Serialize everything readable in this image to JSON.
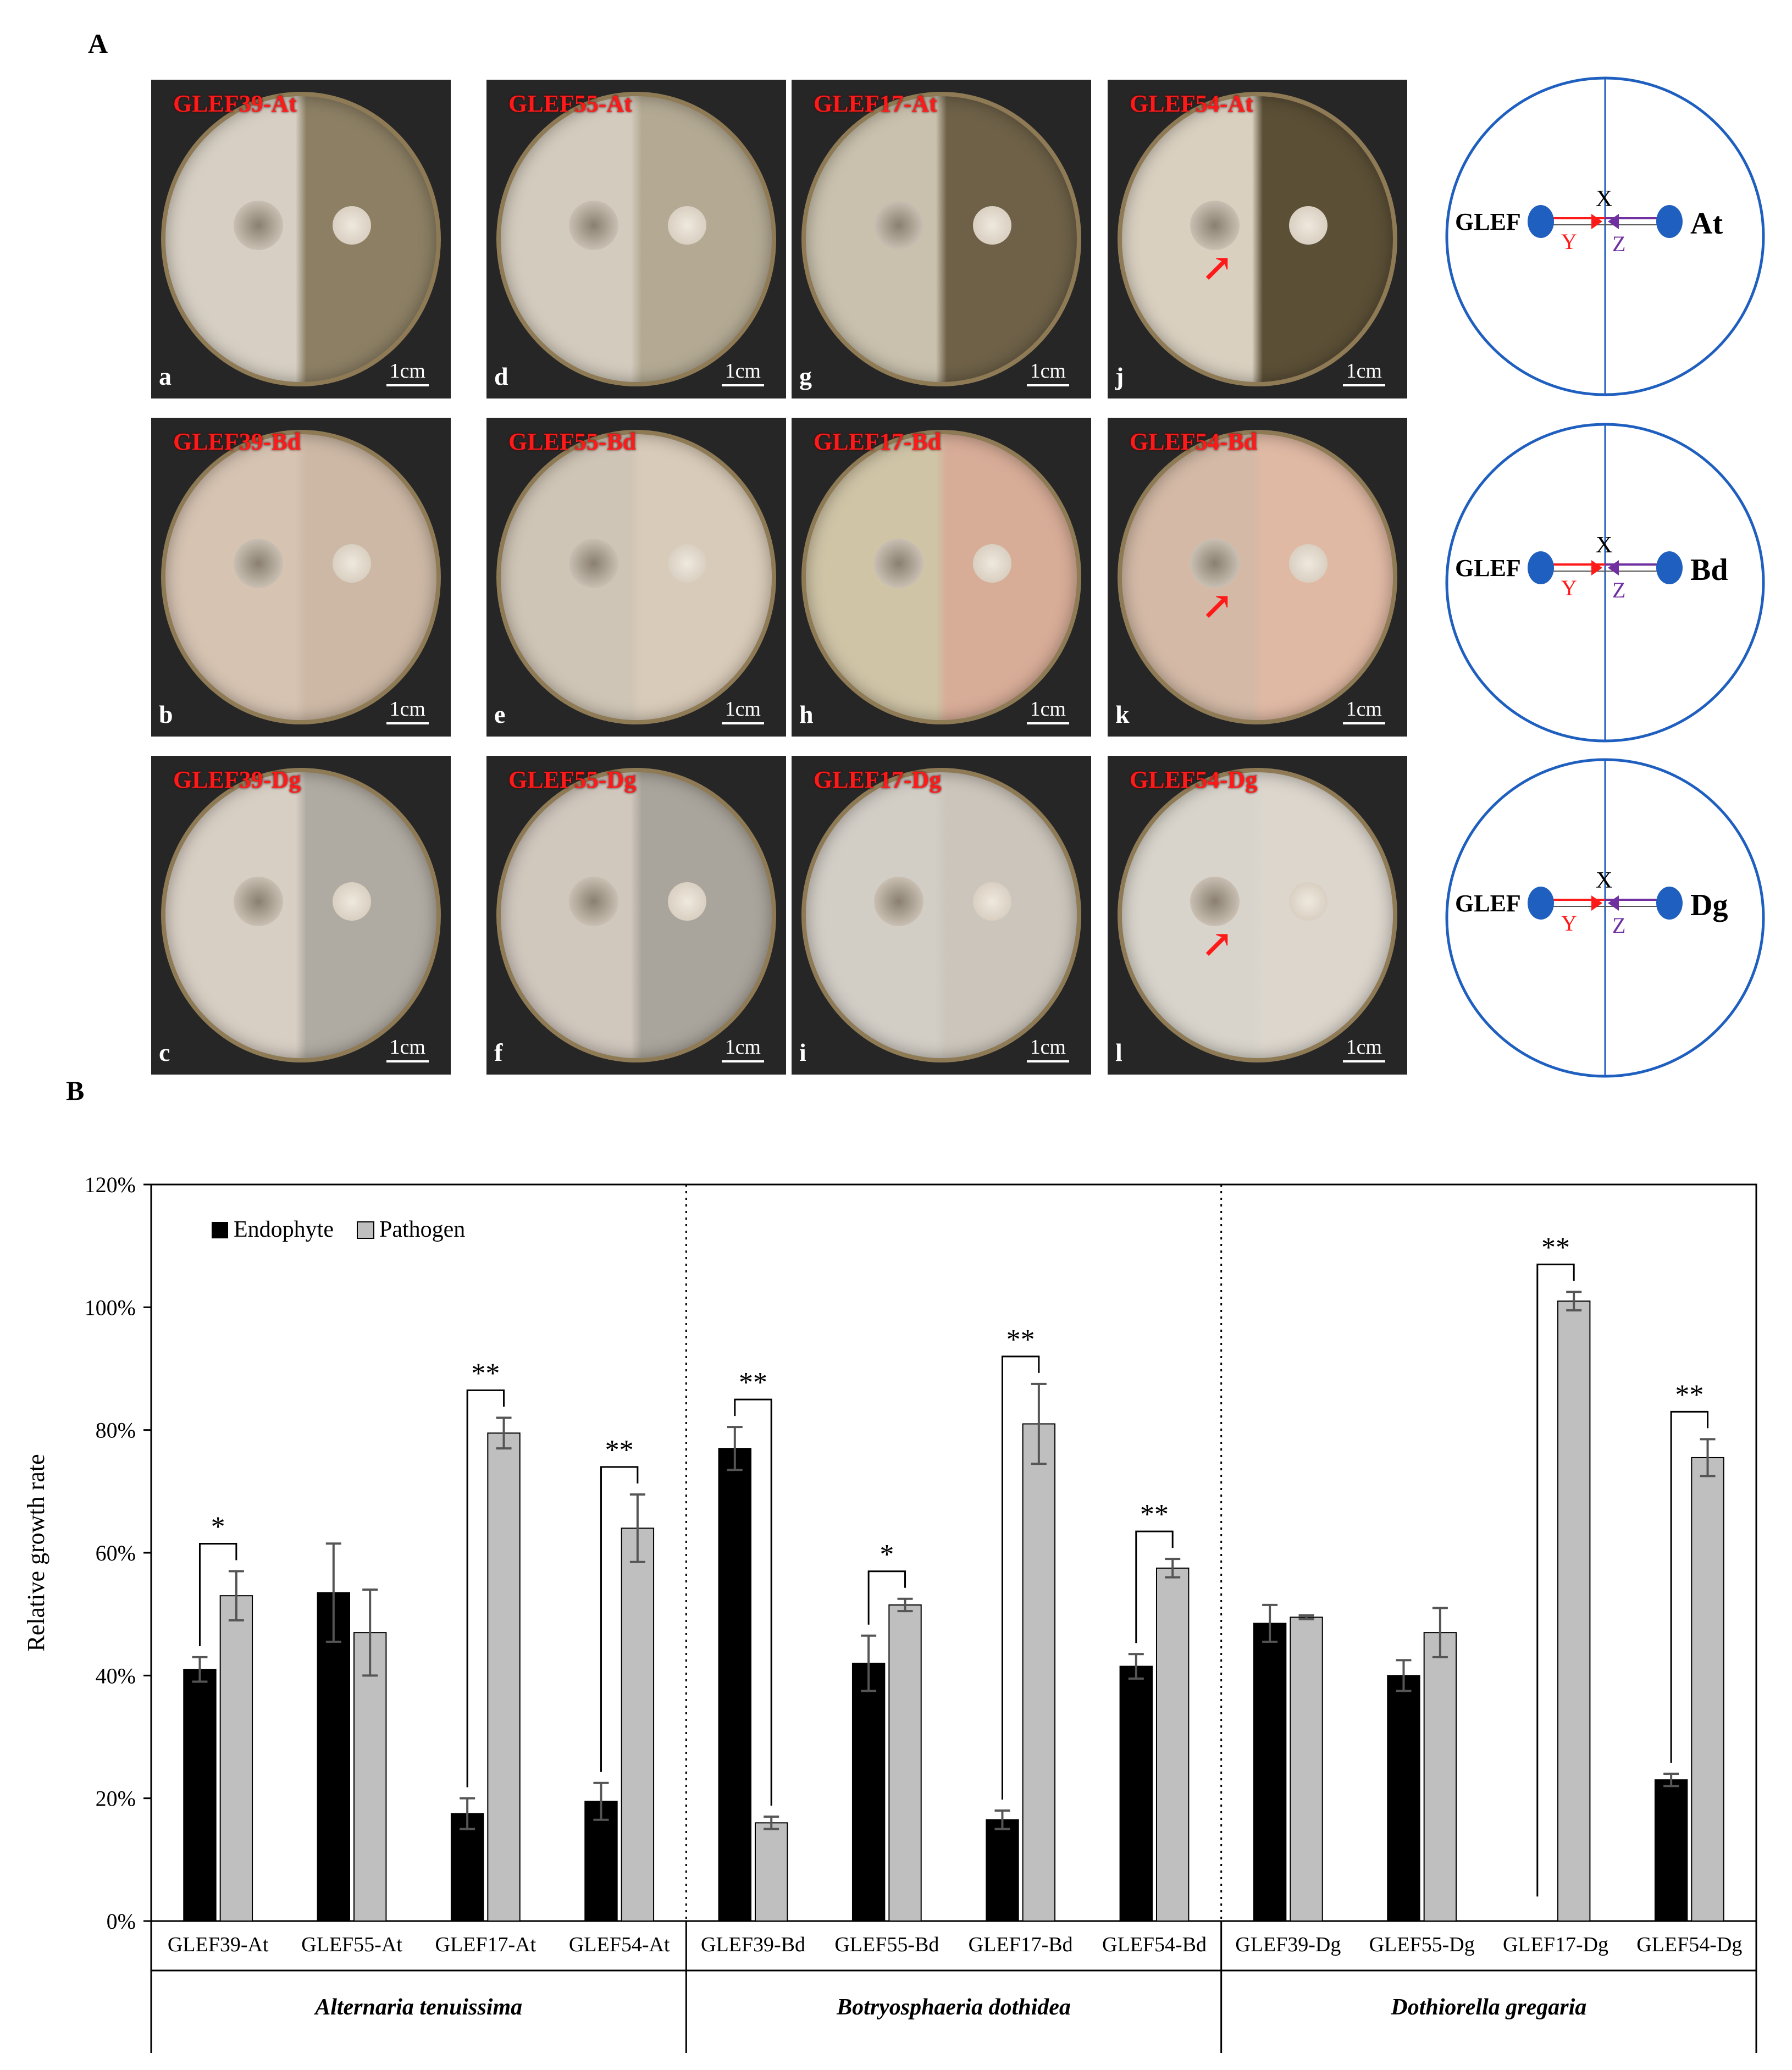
{
  "panel_a_label": "A",
  "panel_b_label": "B",
  "scale_bar_label": "1cm",
  "photos": [
    {
      "label": "GLEF39-At",
      "sub": "a",
      "arrow": false,
      "bg": "#d7cfc3",
      "half": "#8c7f64"
    },
    {
      "label": "GLEF55-At",
      "sub": "d",
      "arrow": false,
      "bg": "#d3cbbd",
      "half": "#b4aa94"
    },
    {
      "label": "GLEF17-At",
      "sub": "g",
      "arrow": false,
      "bg": "#c9c1ad",
      "half": "#6e6148"
    },
    {
      "label": "GLEF54-At",
      "sub": "j",
      "arrow": true,
      "bg": "#d9d0c0",
      "half": "#5b4f36"
    },
    {
      "label": "GLEF39-Bd",
      "sub": "b",
      "arrow": false,
      "bg": "#d6c3b2",
      "half": "#cdb8a5"
    },
    {
      "label": "GLEF55-Bd",
      "sub": "e",
      "arrow": false,
      "bg": "#cfc5b6",
      "half": "#d9cbb9"
    },
    {
      "label": "GLEF17-Bd",
      "sub": "h",
      "arrow": false,
      "bg": "#cfc4a6",
      "half": "#d8ad98"
    },
    {
      "label": "GLEF54-Bd",
      "sub": "k",
      "arrow": true,
      "bg": "#d3b9a6",
      "half": "#e0b9a4"
    },
    {
      "label": "GLEF39-Dg",
      "sub": "c",
      "arrow": false,
      "bg": "#d8cfc4",
      "half": "#b0aba2"
    },
    {
      "label": "GLEF55-Dg",
      "sub": "f",
      "arrow": false,
      "bg": "#d0c7bd",
      "half": "#aaa59c"
    },
    {
      "label": "GLEF17-Dg",
      "sub": "i",
      "arrow": false,
      "bg": "#d2cdc5",
      "half": "#cbc5bb"
    },
    {
      "label": "GLEF54-Dg",
      "sub": "l",
      "arrow": true,
      "bg": "#d8d4cb",
      "half": "#dcd6cd"
    }
  ],
  "schematics": [
    {
      "label_left": "GLEF",
      "label_right": "At",
      "x": "X",
      "y": "Y",
      "z": "Z"
    },
    {
      "label_left": "GLEF",
      "label_right": "Bd",
      "x": "X",
      "y": "Y",
      "z": "Z"
    },
    {
      "label_left": "GLEF",
      "label_right": "Dg",
      "x": "X",
      "y": "Y",
      "z": "Z"
    }
  ],
  "colors": {
    "endophyte": "#000000",
    "pathogen": "#bfbfbf",
    "label_red": "#ff1a1a",
    "schematic_blue": "#1f5fbf",
    "z_purple": "#7030a0"
  },
  "chart_data": {
    "type": "bar",
    "ylabel": "Relative growth rate",
    "ylim": [
      0,
      120
    ],
    "yticks": [
      "0%",
      "20%",
      "40%",
      "60%",
      "80%",
      "100%",
      "120%"
    ],
    "legend": [
      "Endophyte",
      "Pathogen"
    ],
    "legend_position": "top-left",
    "categories": [
      "GLEF39-At",
      "GLEF55-At",
      "GLEF17-At",
      "GLEF54-At",
      "GLEF39-Bd",
      "GLEF55-Bd",
      "GLEF17-Bd",
      "GLEF54-Bd",
      "GLEF39-Dg",
      "GLEF55-Dg",
      "GLEF17-Dg",
      "GLEF54-Dg"
    ],
    "series": [
      {
        "name": "Endophyte",
        "values": [
          41,
          53.5,
          17.5,
          19.5,
          77,
          42,
          16.5,
          41.5,
          48.5,
          40,
          0,
          23
        ],
        "errors": [
          2,
          8,
          2.5,
          3,
          3.5,
          4.5,
          1.5,
          2,
          3,
          2.5,
          0,
          1
        ]
      },
      {
        "name": "Pathogen",
        "values": [
          53,
          47,
          79.5,
          64,
          16,
          51.5,
          81,
          57.5,
          49.5,
          47,
          101,
          75.5
        ],
        "errors": [
          4,
          7,
          2.5,
          5.5,
          1,
          1,
          6.5,
          1.5,
          0.3,
          4,
          1.5,
          3
        ]
      }
    ],
    "significance": [
      "*",
      "",
      "**",
      "**",
      "**",
      "*",
      "**",
      "**",
      "",
      "",
      "**",
      "**"
    ],
    "groups": [
      "Alternaria tenuissima",
      "Botryosphaeria dothidea",
      "Dothiorella gregaria"
    ]
  }
}
